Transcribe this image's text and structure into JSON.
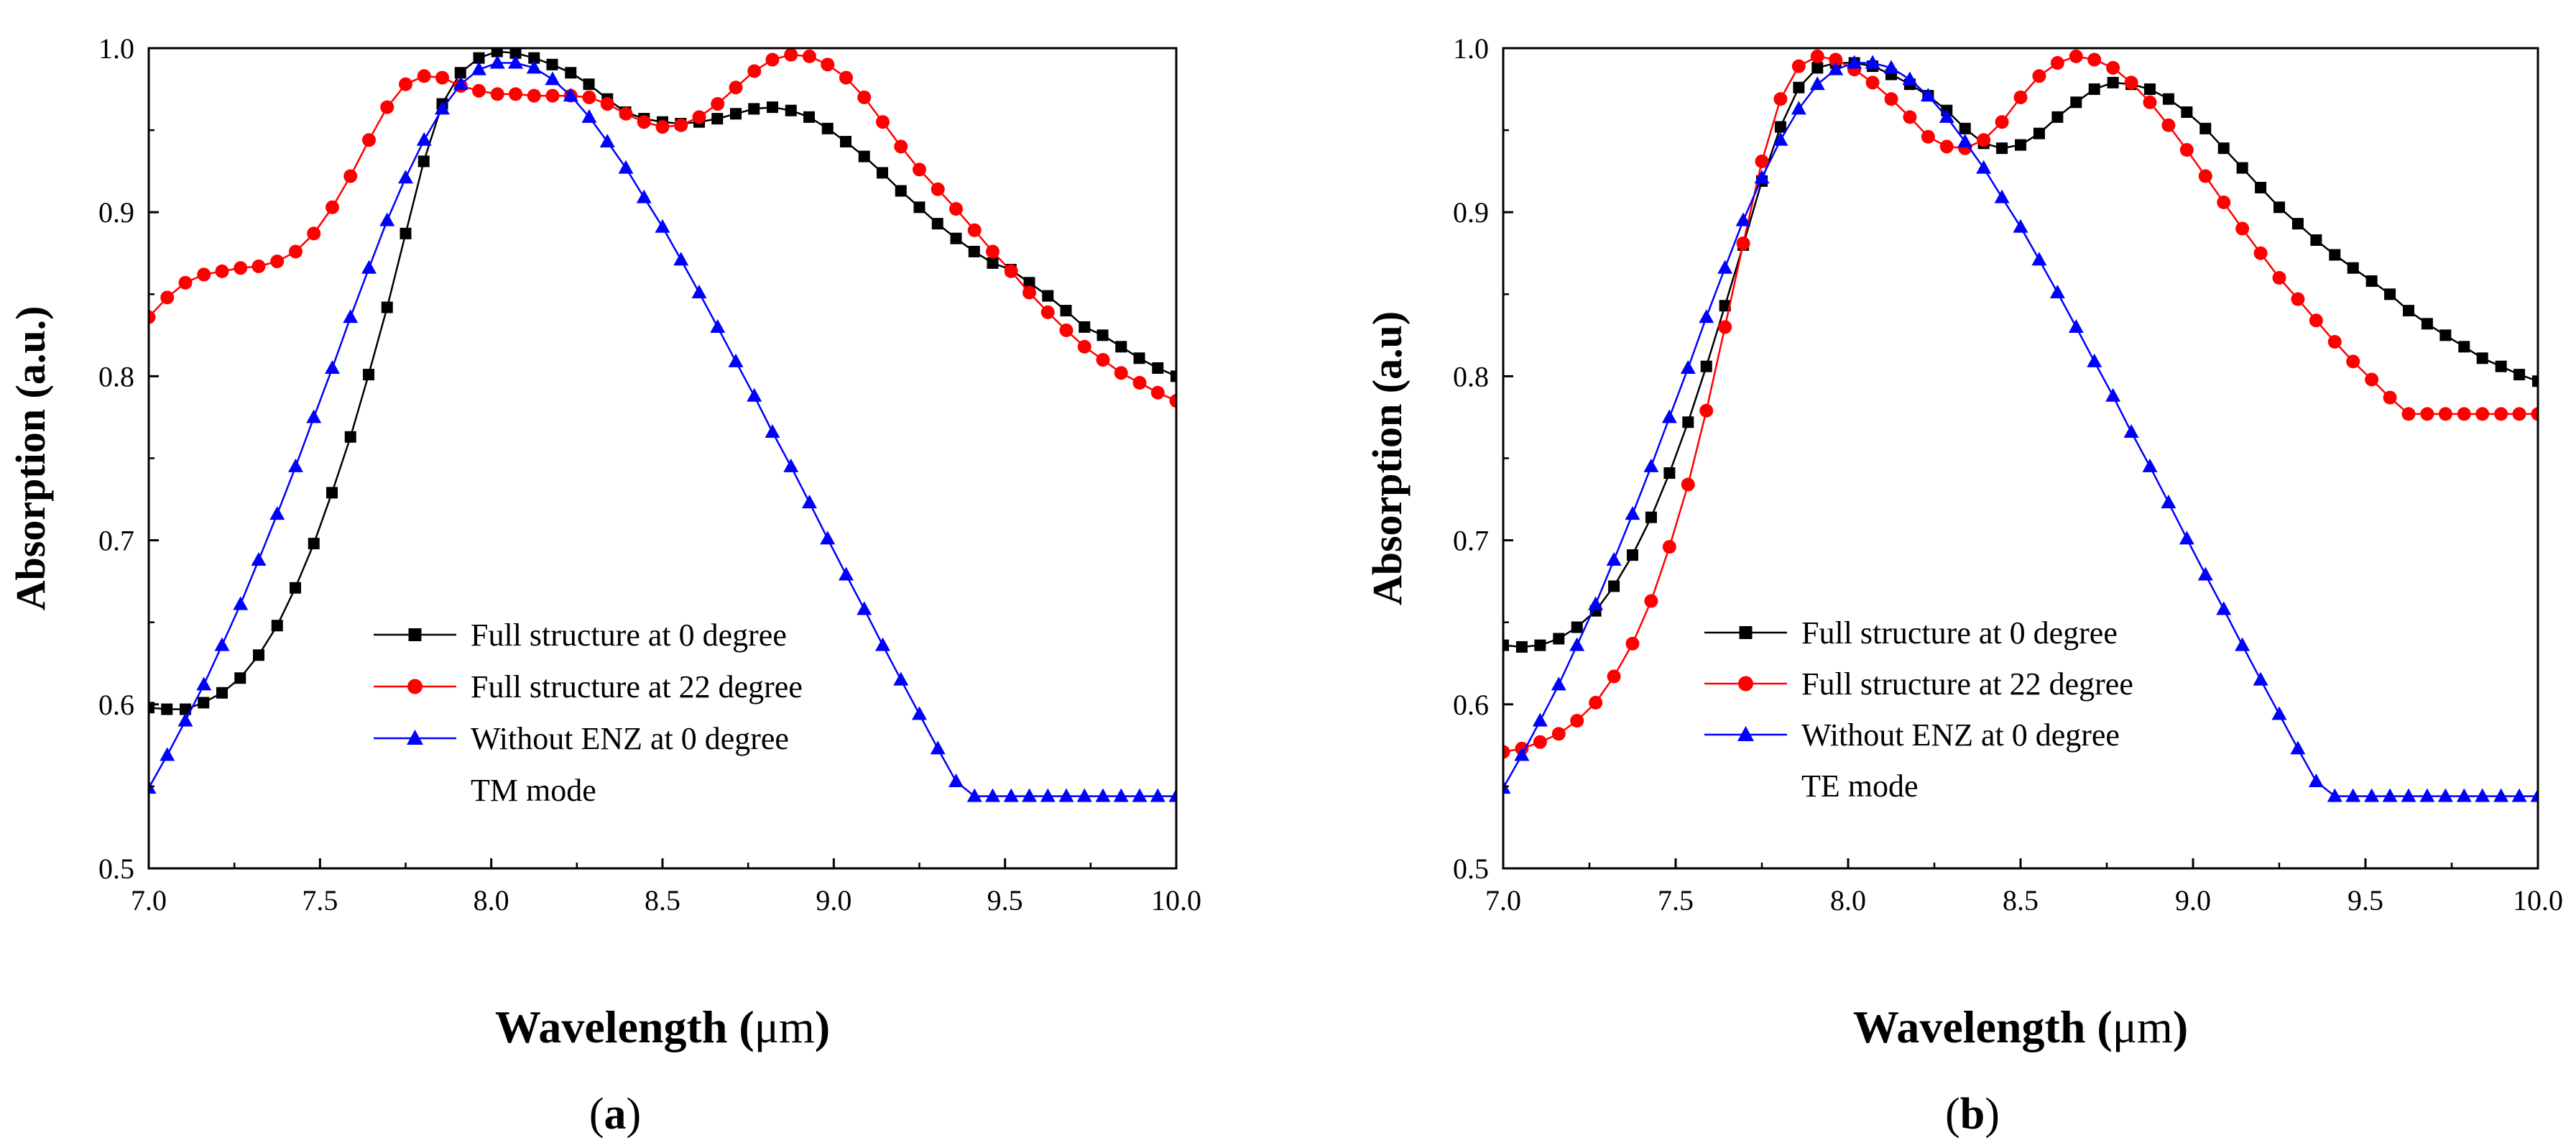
{
  "chart_data": [
    {
      "type": "line",
      "panel_label_open": "(",
      "panel_label": "a",
      "panel_label_close": ")",
      "xlabel_main": "Wavelength (",
      "xlabel_unit": "μm",
      "xlabel_close": ")",
      "ylabel": "Absorption (a.u.)",
      "xlim": [
        7.0,
        10.0
      ],
      "ylim": [
        0.5,
        1.0
      ],
      "xticks": [
        "7.0",
        "7.5",
        "8.0",
        "8.5",
        "9.0",
        "9.5",
        "10.0"
      ],
      "yticks": [
        "0.5",
        "0.6",
        "0.7",
        "0.8",
        "0.9",
        "1.0"
      ],
      "legend_position": "lower-center",
      "legend_note": "TM mode",
      "series": [
        {
          "name": "Full structure at 0 degree",
          "color": "#000000",
          "marker": "square",
          "x": [
            7.0,
            7.053,
            7.107,
            7.16,
            7.214,
            7.267,
            7.321,
            7.375,
            7.428,
            7.482,
            7.535,
            7.589,
            7.642,
            7.696,
            7.75,
            7.803,
            7.857,
            7.91,
            7.964,
            8.017,
            8.071,
            8.125,
            8.178,
            8.232,
            8.285,
            8.339,
            8.392,
            8.446,
            8.5,
            8.553,
            8.607,
            8.66,
            8.714,
            8.767,
            8.821,
            8.875,
            8.928,
            8.982,
            9.035,
            9.089,
            9.142,
            9.196,
            9.25,
            9.303,
            9.357,
            9.41,
            9.464,
            9.517,
            9.571,
            9.625,
            9.678,
            9.732,
            9.785,
            9.839,
            9.892,
            9.946,
            10.0
          ],
          "values": [
            0.598,
            0.597,
            0.597,
            0.601,
            0.607,
            0.616,
            0.63,
            0.648,
            0.671,
            0.698,
            0.729,
            0.763,
            0.801,
            0.842,
            0.887,
            0.931,
            0.966,
            0.985,
            0.994,
            0.998,
            0.997,
            0.994,
            0.99,
            0.985,
            0.978,
            0.969,
            0.961,
            0.957,
            0.955,
            0.954,
            0.955,
            0.957,
            0.96,
            0.963,
            0.964,
            0.962,
            0.958,
            0.951,
            0.943,
            0.934,
            0.924,
            0.913,
            0.903,
            0.893,
            0.884,
            0.876,
            0.869,
            0.865,
            0.857,
            0.849,
            0.84,
            0.83,
            0.825,
            0.818,
            0.811,
            0.805,
            0.8
          ]
        },
        {
          "name": "Full structure at 22 degree",
          "color": "#ff0000",
          "marker": "circle",
          "x": [
            7.0,
            7.054,
            7.107,
            7.161,
            7.214,
            7.268,
            7.321,
            7.375,
            7.429,
            7.482,
            7.536,
            7.589,
            7.643,
            7.696,
            7.75,
            7.804,
            7.857,
            7.911,
            7.964,
            8.018,
            8.071,
            8.125,
            8.179,
            8.232,
            8.286,
            8.339,
            8.393,
            8.446,
            8.5,
            8.554,
            8.607,
            8.661,
            8.714,
            8.768,
            8.821,
            8.875,
            8.929,
            8.982,
            9.036,
            9.089,
            9.143,
            9.196,
            9.25,
            9.304,
            9.357,
            9.411,
            9.464,
            9.518,
            9.571,
            9.625,
            9.679,
            9.732,
            9.786,
            9.839,
            9.893,
            9.946,
            10.0
          ],
          "values": [
            0.836,
            0.848,
            0.857,
            0.862,
            0.864,
            0.866,
            0.867,
            0.87,
            0.876,
            0.887,
            0.903,
            0.922,
            0.944,
            0.964,
            0.978,
            0.983,
            0.982,
            0.977,
            0.974,
            0.972,
            0.972,
            0.971,
            0.971,
            0.971,
            0.97,
            0.966,
            0.96,
            0.955,
            0.952,
            0.953,
            0.958,
            0.966,
            0.976,
            0.986,
            0.993,
            0.996,
            0.995,
            0.99,
            0.982,
            0.97,
            0.955,
            0.94,
            0.926,
            0.914,
            0.902,
            0.889,
            0.876,
            0.864,
            0.851,
            0.839,
            0.828,
            0.818,
            0.81,
            0.802,
            0.796,
            0.79,
            0.785
          ]
        },
        {
          "name": "Without ENZ at 0 degree",
          "color": "#0000ff",
          "marker": "triangle",
          "x": [
            7.0,
            7.054,
            7.107,
            7.161,
            7.214,
            7.268,
            7.321,
            7.375,
            7.429,
            7.482,
            7.536,
            7.589,
            7.643,
            7.696,
            7.75,
            7.804,
            7.857,
            7.911,
            7.964,
            8.018,
            8.071,
            8.125,
            8.179,
            8.232,
            8.286,
            8.339,
            8.393,
            8.446,
            8.5,
            8.554,
            8.607,
            8.661,
            8.714,
            8.768,
            8.821,
            8.875,
            8.929,
            8.982,
            9.036,
            9.089,
            9.143,
            9.196,
            9.25,
            9.304,
            9.357,
            9.411,
            9.464,
            9.518,
            9.571,
            9.625,
            9.679,
            9.732,
            9.786,
            9.839,
            9.893,
            9.946,
            10.0
          ],
          "values": [
            0.549,
            0.569,
            0.59,
            0.612,
            0.636,
            0.661,
            0.688,
            0.716,
            0.745,
            0.775,
            0.805,
            0.836,
            0.866,
            0.895,
            0.921,
            0.944,
            0.963,
            0.978,
            0.987,
            0.991,
            0.991,
            0.988,
            0.981,
            0.971,
            0.958,
            0.943,
            0.927,
            0.909,
            0.891,
            0.871,
            0.851,
            0.83,
            0.809,
            0.788,
            0.766,
            0.745,
            0.723,
            0.701,
            0.679,
            0.658,
            0.636,
            0.615,
            0.594,
            0.573,
            0.553,
            0.544,
            0.544,
            0.544,
            0.544,
            0.544,
            0.544,
            0.544,
            0.544,
            0.544,
            0.544,
            0.544,
            0.544
          ]
        }
      ]
    },
    {
      "type": "line",
      "panel_label_open": "(",
      "panel_label": "b",
      "panel_label_close": ")",
      "xlabel_main": "Wavelength (",
      "xlabel_unit": "μm",
      "xlabel_close": ")",
      "ylabel": "Absorption (a.u)",
      "xlim": [
        7.0,
        10.0
      ],
      "ylim": [
        0.5,
        1.0
      ],
      "xticks": [
        "7.0",
        "7.5",
        "8.0",
        "8.5",
        "9.0",
        "9.5",
        "10.0"
      ],
      "yticks": [
        "0.5",
        "0.6",
        "0.7",
        "0.8",
        "0.9",
        "1.0"
      ],
      "legend_position": "lower-center",
      "legend_note": "TE mode",
      "series": [
        {
          "name": "Full structure at 0 degree",
          "color": "#000000",
          "marker": "square",
          "x": [
            7.0,
            7.054,
            7.107,
            7.161,
            7.214,
            7.268,
            7.321,
            7.375,
            7.429,
            7.482,
            7.536,
            7.589,
            7.643,
            7.696,
            7.75,
            7.804,
            7.857,
            7.911,
            7.964,
            8.018,
            8.071,
            8.125,
            8.179,
            8.232,
            8.286,
            8.339,
            8.393,
            8.446,
            8.5,
            8.554,
            8.607,
            8.661,
            8.714,
            8.768,
            8.821,
            8.875,
            8.929,
            8.982,
            9.036,
            9.089,
            9.143,
            9.196,
            9.25,
            9.304,
            9.357,
            9.411,
            9.464,
            9.518,
            9.571,
            9.625,
            9.679,
            9.732,
            9.786,
            9.839,
            9.893,
            9.946,
            10.0
          ],
          "values": [
            0.636,
            0.635,
            0.636,
            0.64,
            0.647,
            0.657,
            0.672,
            0.691,
            0.714,
            0.741,
            0.772,
            0.806,
            0.843,
            0.88,
            0.919,
            0.952,
            0.976,
            0.988,
            0.991,
            0.991,
            0.989,
            0.984,
            0.978,
            0.971,
            0.962,
            0.951,
            0.942,
            0.939,
            0.941,
            0.948,
            0.958,
            0.967,
            0.975,
            0.979,
            0.978,
            0.975,
            0.969,
            0.961,
            0.951,
            0.939,
            0.927,
            0.915,
            0.903,
            0.893,
            0.883,
            0.874,
            0.866,
            0.858,
            0.85,
            0.84,
            0.832,
            0.825,
            0.818,
            0.811,
            0.806,
            0.801,
            0.797
          ]
        },
        {
          "name": "Full structure at 22 degree",
          "color": "#ff0000",
          "marker": "circle",
          "x": [
            7.0,
            7.054,
            7.107,
            7.161,
            7.214,
            7.268,
            7.321,
            7.375,
            7.429,
            7.482,
            7.536,
            7.589,
            7.643,
            7.696,
            7.75,
            7.804,
            7.857,
            7.911,
            7.964,
            8.018,
            8.071,
            8.125,
            8.179,
            8.232,
            8.286,
            8.339,
            8.393,
            8.446,
            8.5,
            8.554,
            8.607,
            8.661,
            8.714,
            8.768,
            8.821,
            8.875,
            8.929,
            8.982,
            9.036,
            9.089,
            9.143,
            9.196,
            9.25,
            9.304,
            9.357,
            9.411,
            9.464,
            9.518,
            9.571,
            9.625,
            9.679,
            9.732,
            9.786,
            9.839,
            9.893,
            9.946,
            10.0
          ],
          "values": [
            0.571,
            0.573,
            0.577,
            0.582,
            0.59,
            0.601,
            0.617,
            0.637,
            0.663,
            0.696,
            0.734,
            0.779,
            0.83,
            0.881,
            0.931,
            0.969,
            0.989,
            0.995,
            0.993,
            0.987,
            0.979,
            0.969,
            0.958,
            0.946,
            0.94,
            0.939,
            0.944,
            0.955,
            0.97,
            0.983,
            0.991,
            0.995,
            0.993,
            0.988,
            0.979,
            0.967,
            0.953,
            0.938,
            0.922,
            0.906,
            0.89,
            0.875,
            0.86,
            0.847,
            0.834,
            0.821,
            0.809,
            0.798,
            0.787,
            0.777,
            0.777,
            0.777,
            0.777,
            0.777,
            0.777,
            0.777,
            0.777
          ]
        },
        {
          "name": "Without ENZ at 0 degree",
          "color": "#0000ff",
          "marker": "triangle",
          "x": [
            7.0,
            7.054,
            7.107,
            7.161,
            7.214,
            7.268,
            7.321,
            7.375,
            7.429,
            7.482,
            7.536,
            7.589,
            7.643,
            7.696,
            7.75,
            7.804,
            7.857,
            7.911,
            7.964,
            8.018,
            8.071,
            8.125,
            8.179,
            8.232,
            8.286,
            8.339,
            8.393,
            8.446,
            8.5,
            8.554,
            8.607,
            8.661,
            8.714,
            8.768,
            8.821,
            8.875,
            8.929,
            8.982,
            9.036,
            9.089,
            9.143,
            9.196,
            9.25,
            9.304,
            9.357,
            9.411,
            9.464,
            9.518,
            9.571,
            9.625,
            9.679,
            9.732,
            9.786,
            9.839,
            9.893,
            9.946,
            10.0
          ],
          "values": [
            0.549,
            0.569,
            0.59,
            0.612,
            0.636,
            0.661,
            0.688,
            0.716,
            0.745,
            0.775,
            0.805,
            0.836,
            0.866,
            0.895,
            0.921,
            0.944,
            0.963,
            0.978,
            0.987,
            0.991,
            0.991,
            0.988,
            0.981,
            0.971,
            0.958,
            0.943,
            0.927,
            0.909,
            0.891,
            0.871,
            0.851,
            0.83,
            0.809,
            0.788,
            0.766,
            0.745,
            0.723,
            0.701,
            0.679,
            0.658,
            0.636,
            0.615,
            0.594,
            0.573,
            0.553,
            0.544,
            0.544,
            0.544,
            0.544,
            0.544,
            0.544,
            0.544,
            0.544,
            0.544,
            0.544,
            0.544,
            0.544
          ]
        }
      ]
    }
  ]
}
